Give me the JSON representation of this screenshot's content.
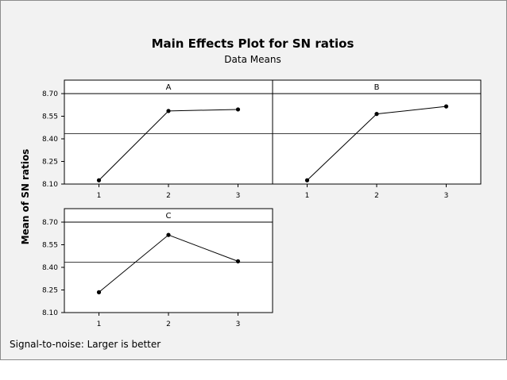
{
  "chart_data": {
    "type": "line",
    "title": "Main Effects Plot for SN ratios",
    "subtitle": "Data Means",
    "ylabel": "Mean of SN ratios",
    "footnote": "Signal-to-noise: Larger is better",
    "ylim": [
      8.1,
      8.7
    ],
    "yticks": [
      "8.70",
      "8.55",
      "8.40",
      "8.25",
      "8.10"
    ],
    "ytick_values": [
      8.7,
      8.55,
      8.4,
      8.25,
      8.1
    ],
    "reference_line": 8.435,
    "grid": false,
    "panels": [
      {
        "name": "A",
        "x": [
          "1",
          "2",
          "3"
        ],
        "values": [
          8.125,
          8.585,
          8.595
        ]
      },
      {
        "name": "B",
        "x": [
          "1",
          "2",
          "3"
        ],
        "values": [
          8.125,
          8.565,
          8.615
        ]
      },
      {
        "name": "C",
        "x": [
          "1",
          "2",
          "3"
        ],
        "values": [
          8.235,
          8.615,
          8.44
        ]
      }
    ]
  }
}
